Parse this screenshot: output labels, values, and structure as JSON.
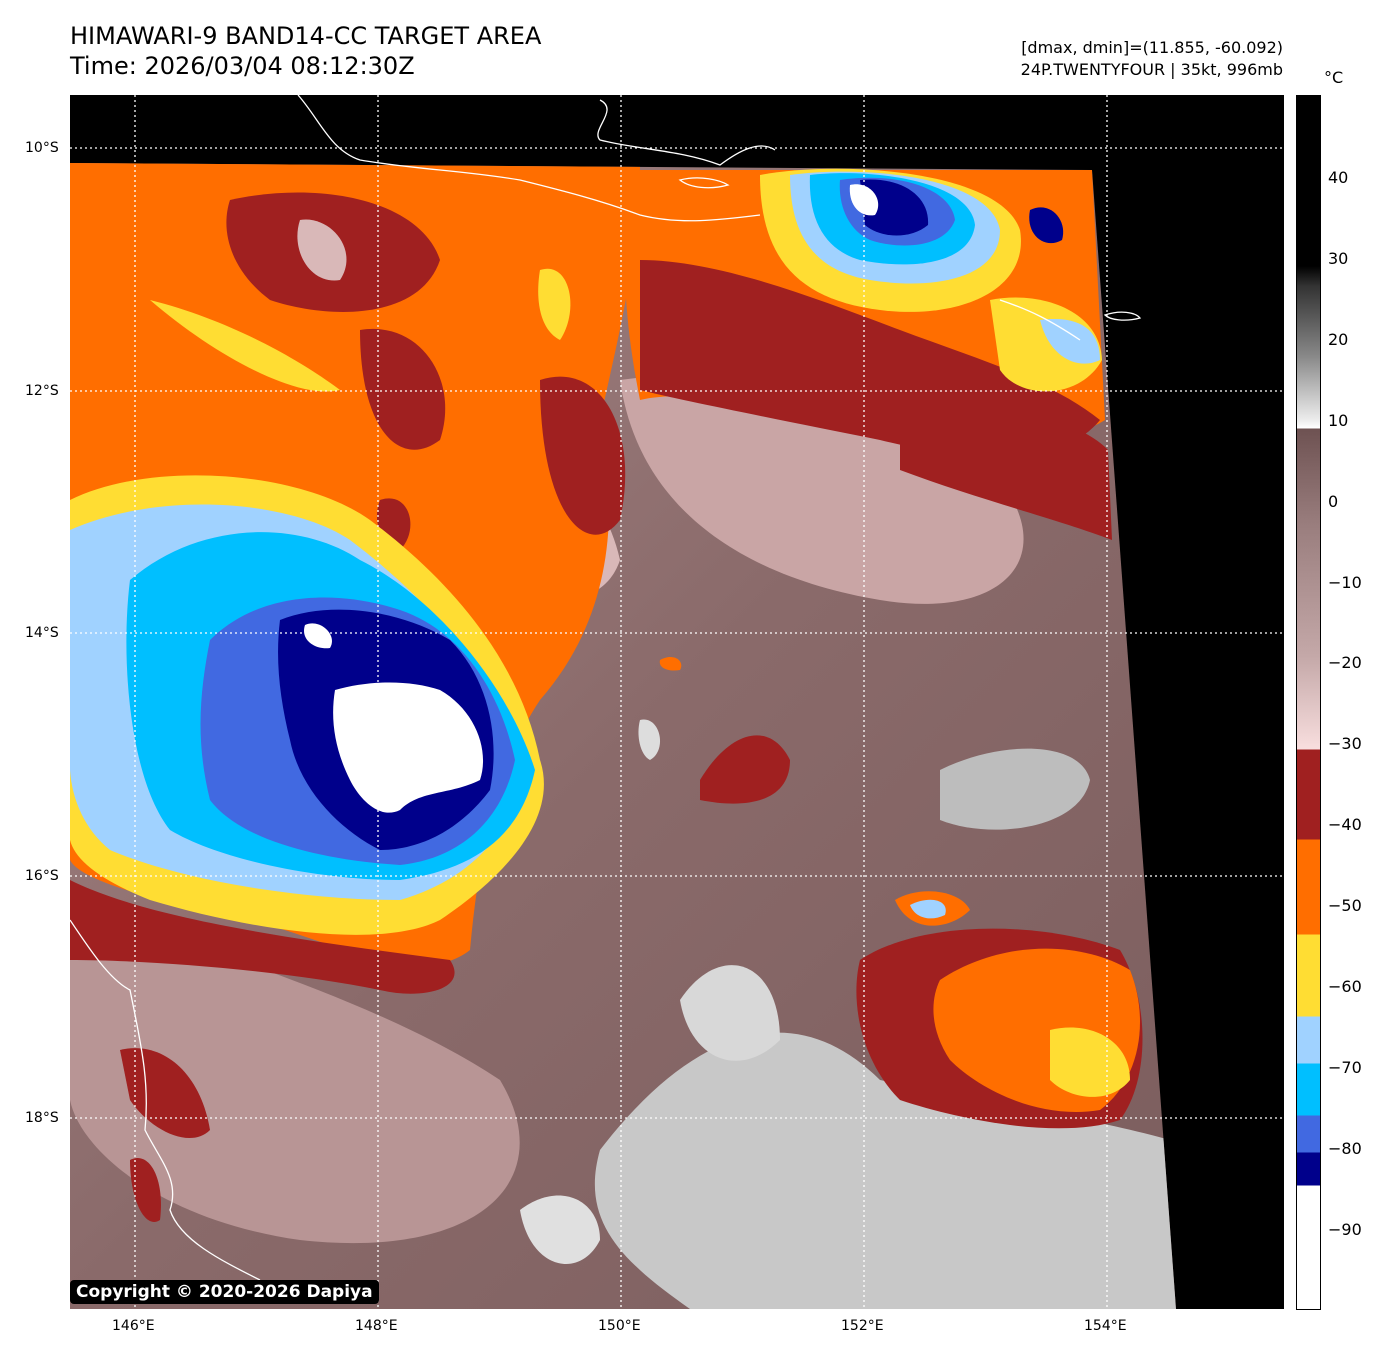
{
  "header": {
    "title": "HIMAWARI-9 BAND14-CC TARGET AREA",
    "time": "Time: 2026/03/04 08:12:30Z",
    "dminmax": "[dmax, dmin]=(11.855, -60.092)",
    "storm": "24P.TWENTYFOUR | 35kt, 996mb"
  },
  "map": {
    "lat_labels": [
      "10°S",
      "12°S",
      "14°S",
      "16°S",
      "18°S"
    ],
    "lon_labels": [
      "146°E",
      "148°E",
      "150°E",
      "152°E",
      "154°E"
    ],
    "copyright": "Copyright © 2020-2026 Dapiya"
  },
  "colorbar": {
    "unit": "°C",
    "range": [
      -100,
      50
    ],
    "ticks": [
      "40",
      "30",
      "20",
      "10",
      "0",
      "−10",
      "−20",
      "−30",
      "−40",
      "−50",
      "−60",
      "−70",
      "−80",
      "−90"
    ],
    "segments": [
      {
        "from": -100,
        "to": -85,
        "color": "#ffffff"
      },
      {
        "from": -85,
        "to": -81,
        "color": "#00008b"
      },
      {
        "from": -81,
        "to": -76,
        "color": "#4169e1"
      },
      {
        "from": -76,
        "to": -70,
        "color": "#00bfff"
      },
      {
        "from": -70,
        "to": -63,
        "color": "#a0d2ff"
      },
      {
        "from": -63,
        "to": -53,
        "color": "#ffdd33"
      },
      {
        "from": -53,
        "to": -42,
        "color": "#ff6e00"
      },
      {
        "from": -42,
        "to": -31,
        "color": "#a02020"
      },
      {
        "from": -31,
        "to": 9,
        "color": "gradient pink-brown"
      },
      {
        "from": 9,
        "to": 30,
        "color": "gradient white-gray-black"
      },
      {
        "from": 30,
        "to": 50,
        "color": "#000000"
      }
    ]
  }
}
